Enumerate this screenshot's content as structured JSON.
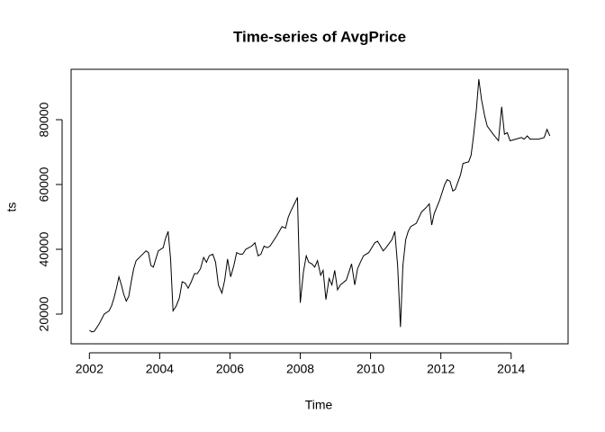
{
  "chart_data": {
    "type": "line",
    "title": "Time-series of AvgPrice",
    "x_label": "Time",
    "y_label": "ts",
    "x": [
      2002.0,
      2002.07,
      2002.14,
      2002.28,
      2002.42,
      2002.56,
      2002.63,
      2002.7,
      2002.77,
      2002.84,
      2002.91,
      2002.98,
      2003.05,
      2003.12,
      2003.19,
      2003.26,
      2003.33,
      2003.47,
      2003.61,
      2003.68,
      2003.75,
      2003.82,
      2003.89,
      2003.96,
      2004.1,
      2004.17,
      2004.24,
      2004.31,
      2004.38,
      2004.47,
      2004.56,
      2004.64,
      2004.73,
      2004.81,
      2004.9,
      2004.99,
      2005.07,
      2005.16,
      2005.25,
      2005.33,
      2005.41,
      2005.51,
      2005.59,
      2005.67,
      2005.77,
      2005.85,
      2005.93,
      2006.02,
      2006.11,
      2006.19,
      2006.28,
      2006.36,
      2006.45,
      2006.62,
      2006.71,
      2006.8,
      2006.88,
      2006.97,
      2007.06,
      2007.14,
      2007.32,
      2007.48,
      2007.58,
      2007.66,
      2007.74,
      2007.83,
      2007.92,
      2008.0,
      2008.09,
      2008.17,
      2008.24,
      2008.33,
      2008.41,
      2008.49,
      2008.58,
      2008.65,
      2008.73,
      2008.82,
      2008.9,
      2008.98,
      2009.06,
      2009.14,
      2009.31,
      2009.46,
      2009.55,
      2009.63,
      2009.71,
      2009.8,
      2009.95,
      2010.12,
      2010.2,
      2010.36,
      2010.44,
      2010.61,
      2010.69,
      2010.77,
      2010.85,
      2010.92,
      2011.0,
      2011.07,
      2011.14,
      2011.3,
      2011.45,
      2011.59,
      2011.67,
      2011.74,
      2011.81,
      2011.96,
      2012.11,
      2012.18,
      2012.26,
      2012.34,
      2012.41,
      2012.56,
      2012.63,
      2012.79,
      2012.86,
      2012.93,
      2013.01,
      2013.08,
      2013.16,
      2013.25,
      2013.32,
      2013.49,
      2013.64,
      2013.73,
      2013.81,
      2013.89,
      2013.97,
      2014.13,
      2014.29,
      2014.37,
      2014.46,
      2014.54,
      2014.78,
      2014.94,
      2015.02,
      2015.1
    ],
    "values": [
      15000,
      14500,
      14700,
      17000,
      20000,
      21000,
      22500,
      25000,
      28000,
      31500,
      29000,
      26000,
      24000,
      25500,
      30000,
      34000,
      36500,
      38000,
      39500,
      39000,
      35000,
      34500,
      37000,
      39500,
      40500,
      43500,
      45500,
      37000,
      21000,
      22500,
      25000,
      30000,
      29500,
      28000,
      30000,
      32500,
      32500,
      34000,
      37500,
      36000,
      38000,
      38500,
      36000,
      29000,
      26500,
      30500,
      37000,
      31500,
      35000,
      39000,
      38500,
      38500,
      40000,
      41000,
      42000,
      38000,
      38500,
      41000,
      40500,
      41000,
      44000,
      47000,
      46500,
      50000,
      52000,
      54000,
      56000,
      23500,
      33000,
      38000,
      36000,
      35500,
      34500,
      36500,
      32000,
      33500,
      24500,
      31000,
      29000,
      33500,
      27500,
      29000,
      30500,
      35500,
      29000,
      34000,
      36000,
      38000,
      39000,
      42000,
      42500,
      39500,
      40500,
      43000,
      45500,
      35000,
      16000,
      35000,
      43000,
      45500,
      47000,
      48000,
      51500,
      53000,
      54000,
      47500,
      51000,
      55000,
      60000,
      61500,
      61000,
      58000,
      58500,
      63000,
      66500,
      67000,
      69000,
      75000,
      83000,
      92500,
      86000,
      81000,
      78000,
      75500,
      73500,
      84000,
      75500,
      76000,
      73500,
      74000,
      74500,
      74000,
      75000,
      74000,
      74000,
      74500,
      77000,
      75000
    ],
    "color": "#000000",
    "xlim": [
      2001.48,
      2015.62
    ],
    "xticks": [
      2002,
      2004,
      2006,
      2008,
      2010,
      2012,
      2014
    ],
    "ylim": [
      10830,
      95560
    ],
    "yticks": [
      20000,
      40000,
      60000,
      80000
    ]
  }
}
